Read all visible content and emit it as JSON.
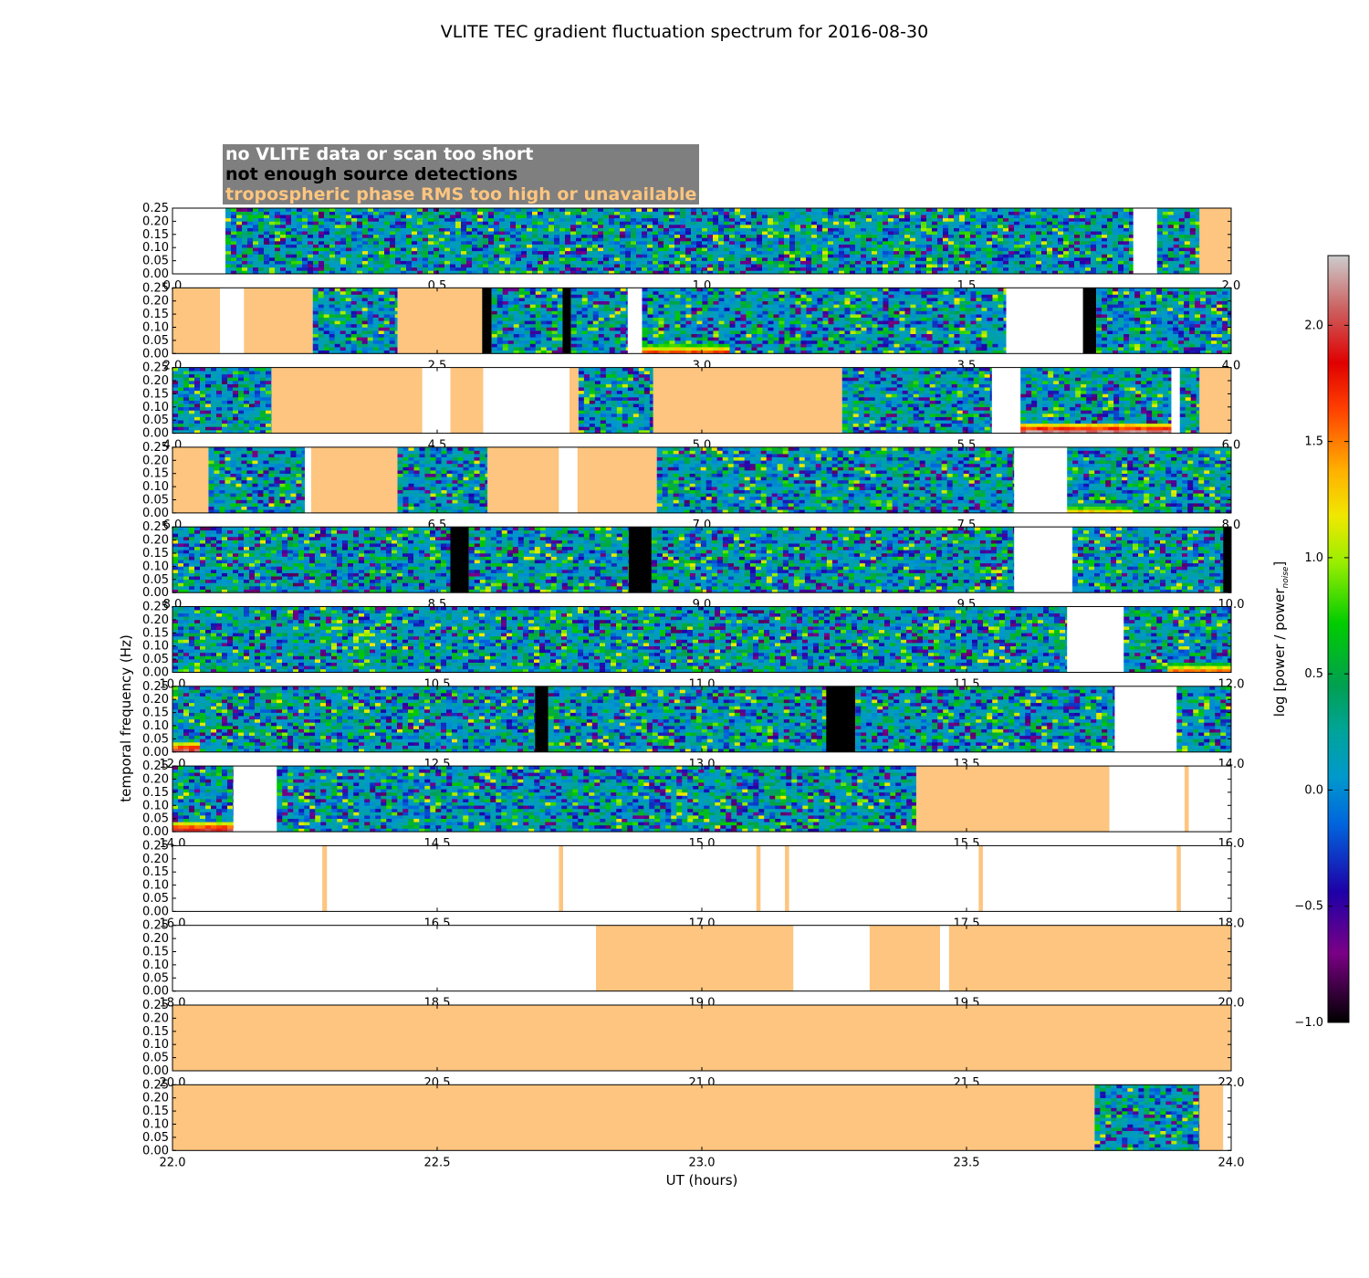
{
  "chart_data": {
    "type": "heatmap",
    "title": "VLITE TEC gradient fluctuation spectrum for 2016-08-30",
    "xlabel": "UT (hours)",
    "ylabel": "temporal frequency (Hz)",
    "ylim": [
      0,
      0.25
    ],
    "yticks": [
      "0.00",
      "0.05",
      "0.10",
      "0.15",
      "0.20",
      "0.25"
    ],
    "colorbar": {
      "label": "log [power / power",
      "label_sub": "noise",
      "label_end": "]",
      "range": [
        -1.0,
        2.3
      ],
      "ticks": [
        {
          "value": 2.0,
          "label": "2.0"
        },
        {
          "value": 1.5,
          "label": "1.5"
        },
        {
          "value": 1.0,
          "label": "1.0"
        },
        {
          "value": 0.5,
          "label": "0.5"
        },
        {
          "value": 0.0,
          "label": "0.0"
        },
        {
          "value": -0.5,
          "label": "−0.5"
        },
        {
          "value": -1.0,
          "label": "−1.0"
        }
      ]
    },
    "legend": [
      {
        "label": "no VLITE data or scan too short",
        "color": "#ffffff",
        "status": "nodata"
      },
      {
        "label": "not enough source detections",
        "color": "#000000",
        "status": "nodet"
      },
      {
        "label": "tropospheric phase RMS too high or unavailable",
        "color": "#fdc57f",
        "status": "tropo"
      }
    ],
    "colors": {
      "nodata": "#ffffff",
      "nodet": "#000000",
      "tropo": "#fdc57f"
    },
    "panels": [
      {
        "xrange": [
          0.0,
          2.0
        ],
        "xticks": [
          "0.0",
          "0.5",
          "1.0",
          "1.5",
          "2.0"
        ],
        "segments": [
          {
            "start": 0.0,
            "end": 0.1,
            "status": "nodata"
          },
          {
            "start": 0.1,
            "end": 1.815,
            "status": "data"
          },
          {
            "start": 1.815,
            "end": 1.86,
            "status": "nodata"
          },
          {
            "start": 1.86,
            "end": 1.94,
            "status": "data"
          },
          {
            "start": 1.94,
            "end": 2.0,
            "status": "tropo"
          }
        ]
      },
      {
        "xrange": [
          2.0,
          4.0
        ],
        "xticks": [
          "2.0",
          "2.5",
          "3.0",
          "3.5",
          "4.0"
        ],
        "segments": [
          {
            "start": 2.0,
            "end": 2.09,
            "status": "tropo"
          },
          {
            "start": 2.09,
            "end": 2.135,
            "status": "nodata"
          },
          {
            "start": 2.135,
            "end": 2.265,
            "status": "tropo"
          },
          {
            "start": 2.265,
            "end": 2.425,
            "status": "data"
          },
          {
            "start": 2.425,
            "end": 2.585,
            "status": "tropo"
          },
          {
            "start": 2.585,
            "end": 2.603,
            "status": "nodet"
          },
          {
            "start": 2.603,
            "end": 2.737,
            "status": "data"
          },
          {
            "start": 2.737,
            "end": 2.753,
            "status": "nodet"
          },
          {
            "start": 2.753,
            "end": 2.86,
            "status": "data"
          },
          {
            "start": 2.86,
            "end": 2.887,
            "status": "nodata"
          },
          {
            "start": 2.887,
            "end": 3.575,
            "status": "data",
            "hot": [
              {
                "start": 2.887,
                "end": 3.05,
                "level": 1.5
              }
            ]
          },
          {
            "start": 3.575,
            "end": 3.72,
            "status": "nodata"
          },
          {
            "start": 3.72,
            "end": 3.745,
            "status": "nodet"
          },
          {
            "start": 3.745,
            "end": 4.0,
            "status": "data"
          }
        ]
      },
      {
        "xrange": [
          4.0,
          6.0
        ],
        "xticks": [
          "4.0",
          "4.5",
          "5.0",
          "5.5",
          "6.0"
        ],
        "segments": [
          {
            "start": 4.0,
            "end": 4.187,
            "status": "data"
          },
          {
            "start": 4.187,
            "end": 4.472,
            "status": "tropo"
          },
          {
            "start": 4.472,
            "end": 4.525,
            "status": "nodata"
          },
          {
            "start": 4.525,
            "end": 4.587,
            "status": "tropo"
          },
          {
            "start": 4.587,
            "end": 4.75,
            "status": "nodata"
          },
          {
            "start": 4.75,
            "end": 4.767,
            "status": "tropo"
          },
          {
            "start": 4.767,
            "end": 4.908,
            "status": "data"
          },
          {
            "start": 4.908,
            "end": 5.265,
            "status": "tropo"
          },
          {
            "start": 5.265,
            "end": 5.548,
            "status": "data"
          },
          {
            "start": 5.548,
            "end": 5.602,
            "status": "nodata"
          },
          {
            "start": 5.602,
            "end": 5.887,
            "status": "data",
            "hot": [
              {
                "start": 5.605,
                "end": 5.885,
                "level": 2.0
              }
            ]
          },
          {
            "start": 5.887,
            "end": 5.903,
            "status": "nodata"
          },
          {
            "start": 5.903,
            "end": 5.94,
            "status": "data"
          },
          {
            "start": 5.94,
            "end": 6.0,
            "status": "tropo"
          }
        ]
      },
      {
        "xrange": [
          6.0,
          8.0
        ],
        "xticks": [
          "6.0",
          "6.5",
          "7.0",
          "7.5",
          "8.0"
        ],
        "segments": [
          {
            "start": 6.0,
            "end": 6.068,
            "status": "tropo"
          },
          {
            "start": 6.068,
            "end": 6.25,
            "status": "data"
          },
          {
            "start": 6.25,
            "end": 6.262,
            "status": "nodata"
          },
          {
            "start": 6.262,
            "end": 6.425,
            "status": "tropo"
          },
          {
            "start": 6.425,
            "end": 6.595,
            "status": "data"
          },
          {
            "start": 6.595,
            "end": 6.73,
            "status": "tropo"
          },
          {
            "start": 6.73,
            "end": 6.765,
            "status": "nodata"
          },
          {
            "start": 6.765,
            "end": 6.915,
            "status": "tropo"
          },
          {
            "start": 6.915,
            "end": 7.59,
            "status": "data"
          },
          {
            "start": 7.59,
            "end": 7.69,
            "status": "nodata"
          },
          {
            "start": 7.69,
            "end": 8.0,
            "status": "data",
            "hot": [
              {
                "start": 7.69,
                "end": 7.8,
                "level": 1.1
              }
            ]
          }
        ]
      },
      {
        "xrange": [
          8.0,
          10.0
        ],
        "xticks": [
          "8.0",
          "8.5",
          "9.0",
          "9.5",
          "10.0"
        ],
        "segments": [
          {
            "start": 8.0,
            "end": 8.525,
            "status": "data"
          },
          {
            "start": 8.525,
            "end": 8.56,
            "status": "nodet"
          },
          {
            "start": 8.56,
            "end": 8.862,
            "status": "data"
          },
          {
            "start": 8.862,
            "end": 8.905,
            "status": "nodet"
          },
          {
            "start": 8.905,
            "end": 9.59,
            "status": "data"
          },
          {
            "start": 9.59,
            "end": 9.7,
            "status": "nodata"
          },
          {
            "start": 9.7,
            "end": 9.985,
            "status": "data"
          },
          {
            "start": 9.985,
            "end": 10.0,
            "status": "nodet"
          }
        ]
      },
      {
        "xrange": [
          10.0,
          12.0
        ],
        "xticks": [
          "10.0",
          "10.5",
          "11.0",
          "11.5",
          "12.0"
        ],
        "segments": [
          {
            "start": 10.0,
            "end": 11.69,
            "status": "data"
          },
          {
            "start": 11.69,
            "end": 11.797,
            "status": "nodata"
          },
          {
            "start": 11.797,
            "end": 12.0,
            "status": "data",
            "hot": [
              {
                "start": 11.88,
                "end": 12.0,
                "level": 1.4
              }
            ]
          }
        ]
      },
      {
        "xrange": [
          12.0,
          14.0
        ],
        "xticks": [
          "12.0",
          "12.5",
          "13.0",
          "13.5",
          "14.0"
        ],
        "segments": [
          {
            "start": 12.0,
            "end": 12.685,
            "status": "data",
            "hot": [
              {
                "start": 12.0,
                "end": 12.05,
                "level": 1.9
              }
            ]
          },
          {
            "start": 12.685,
            "end": 12.71,
            "status": "nodet"
          },
          {
            "start": 12.71,
            "end": 13.235,
            "status": "data"
          },
          {
            "start": 13.235,
            "end": 13.29,
            "status": "nodet"
          },
          {
            "start": 13.29,
            "end": 13.78,
            "status": "data"
          },
          {
            "start": 13.78,
            "end": 13.897,
            "status": "nodata"
          },
          {
            "start": 13.897,
            "end": 14.0,
            "status": "data"
          }
        ]
      },
      {
        "xrange": [
          14.0,
          16.0
        ],
        "xticks": [
          "14.0",
          "14.5",
          "15.0",
          "15.5",
          "16.0"
        ],
        "segments": [
          {
            "start": 14.0,
            "end": 14.115,
            "status": "data",
            "hot": [
              {
                "start": 14.0,
                "end": 14.115,
                "level": 1.9
              }
            ]
          },
          {
            "start": 14.115,
            "end": 14.197,
            "status": "nodata"
          },
          {
            "start": 14.197,
            "end": 15.405,
            "status": "data"
          },
          {
            "start": 15.405,
            "end": 15.77,
            "status": "tropo"
          },
          {
            "start": 15.77,
            "end": 15.912,
            "status": "nodata"
          },
          {
            "start": 15.912,
            "end": 15.92,
            "status": "tropo"
          },
          {
            "start": 15.92,
            "end": 16.0,
            "status": "nodata"
          }
        ]
      },
      {
        "xrange": [
          16.0,
          18.0
        ],
        "xticks": [
          "16.0",
          "16.5",
          "17.0",
          "17.5",
          "18.0"
        ],
        "segments": [
          {
            "start": 16.0,
            "end": 16.283,
            "status": "nodata"
          },
          {
            "start": 16.283,
            "end": 16.292,
            "status": "tropo"
          },
          {
            "start": 16.292,
            "end": 16.73,
            "status": "nodata"
          },
          {
            "start": 16.73,
            "end": 16.738,
            "status": "tropo"
          },
          {
            "start": 16.738,
            "end": 17.103,
            "status": "nodata"
          },
          {
            "start": 17.103,
            "end": 17.111,
            "status": "tropo"
          },
          {
            "start": 17.111,
            "end": 17.157,
            "status": "nodata"
          },
          {
            "start": 17.157,
            "end": 17.165,
            "status": "tropo"
          },
          {
            "start": 17.165,
            "end": 17.523,
            "status": "nodata"
          },
          {
            "start": 17.523,
            "end": 17.531,
            "status": "tropo"
          },
          {
            "start": 17.531,
            "end": 17.897,
            "status": "nodata"
          },
          {
            "start": 17.897,
            "end": 17.905,
            "status": "tropo"
          },
          {
            "start": 17.905,
            "end": 18.0,
            "status": "nodata"
          }
        ]
      },
      {
        "xrange": [
          18.0,
          20.0
        ],
        "xticks": [
          "18.0",
          "18.5",
          "19.0",
          "19.5",
          "20.0"
        ],
        "segments": [
          {
            "start": 18.0,
            "end": 18.8,
            "status": "nodata"
          },
          {
            "start": 18.8,
            "end": 19.173,
            "status": "tropo"
          },
          {
            "start": 19.173,
            "end": 19.317,
            "status": "nodata"
          },
          {
            "start": 19.317,
            "end": 19.45,
            "status": "tropo"
          },
          {
            "start": 19.45,
            "end": 19.467,
            "status": "nodata"
          },
          {
            "start": 19.467,
            "end": 20.0,
            "status": "tropo"
          }
        ]
      },
      {
        "xrange": [
          20.0,
          22.0
        ],
        "xticks": [
          "20.0",
          "20.5",
          "21.0",
          "21.5",
          "22.0"
        ],
        "segments": [
          {
            "start": 20.0,
            "end": 22.0,
            "status": "tropo"
          }
        ]
      },
      {
        "xrange": [
          22.0,
          24.0
        ],
        "xticks": [
          "22.0",
          "22.5",
          "23.0",
          "23.5",
          "24.0"
        ],
        "segments": [
          {
            "start": 22.0,
            "end": 23.742,
            "status": "tropo"
          },
          {
            "start": 23.742,
            "end": 23.94,
            "status": "data"
          },
          {
            "start": 23.94,
            "end": 23.985,
            "status": "tropo"
          },
          {
            "start": 23.985,
            "end": 24.0,
            "status": "nodata"
          }
        ]
      }
    ]
  }
}
